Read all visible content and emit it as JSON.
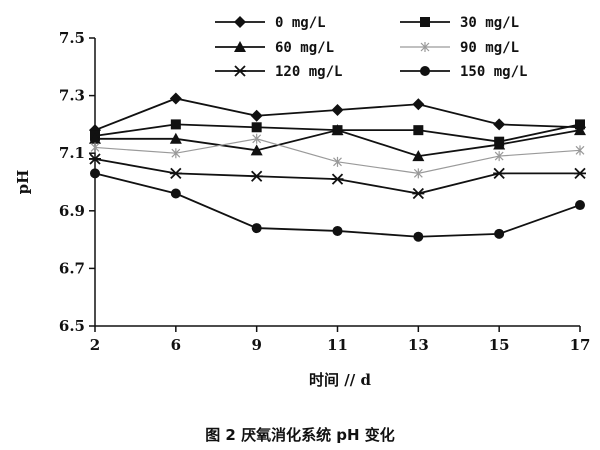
{
  "chart_data": {
    "type": "line",
    "title": "",
    "caption": "图 2   厌氧消化系统 pH 变化",
    "xlabel": "时间 // d",
    "ylabel": "pH",
    "categories": [
      "2",
      "6",
      "9",
      "11",
      "13",
      "15",
      "17"
    ],
    "ylim": [
      6.5,
      7.5
    ],
    "yticks": [
      "6.5",
      "6.7",
      "6.9",
      "7.1",
      "7.3",
      "7.5"
    ],
    "legend_position": "top",
    "series": [
      {
        "name": "0 mg/L",
        "marker": "diamond",
        "color": "#111111",
        "values": [
          7.18,
          7.29,
          7.23,
          7.25,
          7.27,
          7.2,
          7.19
        ]
      },
      {
        "name": "30 mg/L",
        "marker": "square",
        "color": "#111111",
        "values": [
          7.16,
          7.2,
          7.19,
          7.18,
          7.18,
          7.14,
          7.2
        ]
      },
      {
        "name": "60 mg/L",
        "marker": "triangle",
        "color": "#111111",
        "values": [
          7.15,
          7.15,
          7.11,
          7.18,
          7.09,
          7.13,
          7.18
        ]
      },
      {
        "name": "90 mg/L",
        "marker": "star",
        "color": "#9a9a9a",
        "values": [
          7.12,
          7.1,
          7.15,
          7.07,
          7.03,
          7.09,
          7.11
        ]
      },
      {
        "name": "120 mg/L",
        "marker": "asterisk",
        "color": "#111111",
        "values": [
          7.08,
          7.03,
          7.02,
          7.01,
          6.96,
          7.03,
          7.03
        ]
      },
      {
        "name": "150 mg/L",
        "marker": "circle",
        "color": "#111111",
        "values": [
          7.03,
          6.96,
          6.84,
          6.83,
          6.81,
          6.82,
          6.92
        ]
      }
    ]
  }
}
